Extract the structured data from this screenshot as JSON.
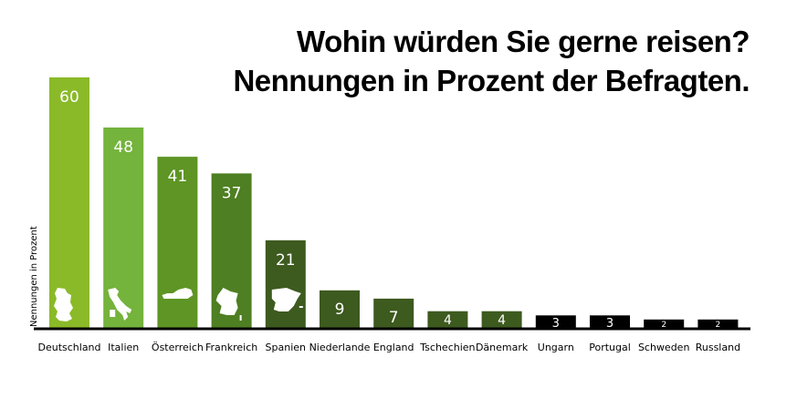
{
  "chart_data": {
    "type": "bar",
    "title": "Wohin würden Sie gerne reisen?",
    "subtitle": "Nennungen in Prozent der Befragten.",
    "xlabel": "",
    "ylabel": "Nennungen in Prozent",
    "ylim": [
      0,
      60
    ],
    "grid": false,
    "legend": "none",
    "categories": [
      "Deutschland",
      "Italien",
      "Österreich",
      "Frankreich",
      "Spanien",
      "Niederlande",
      "England",
      "Tschechien",
      "Dänemark",
      "Ungarn",
      "Portugal",
      "Schweden",
      "Russland"
    ],
    "values": [
      60,
      48,
      41,
      37,
      21,
      9,
      7,
      4,
      4,
      3,
      3,
      2,
      2
    ],
    "data_labels": [
      "60",
      "48",
      "41",
      "37",
      "21",
      "9",
      "7",
      "4",
      "4",
      "3",
      "3",
      "2",
      "2"
    ],
    "bar_colors": [
      "#8aba28",
      "#74b33c",
      "#5e9524",
      "#4e7f22",
      "#3d5a1f",
      "#3d5a1f",
      "#3d5a1f",
      "#3d5a1f",
      "#3d5a1f",
      "#000000",
      "#000000",
      "#000000",
      "#000000"
    ],
    "country_icons": [
      "germany-map-icon",
      "italy-map-icon",
      "austria-map-icon",
      "france-map-icon",
      "spain-map-icon",
      null,
      null,
      null,
      null,
      null,
      null,
      null,
      null
    ]
  }
}
